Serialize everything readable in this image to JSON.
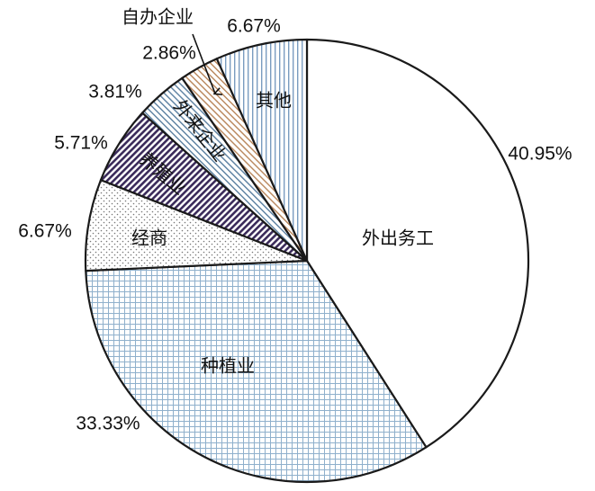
{
  "chart_data": {
    "type": "pie",
    "title": "",
    "start": "12 o'clock",
    "direction": "clockwise",
    "slices": [
      {
        "label": "外出务工",
        "value": 40.95,
        "value_label": "40.95%",
        "pattern": "plain"
      },
      {
        "label": "种植业",
        "value": 33.33,
        "value_label": "33.33%",
        "pattern": "fine grid, light blue"
      },
      {
        "label": "经商",
        "value": 6.67,
        "value_label": "6.67%",
        "pattern": "dots"
      },
      {
        "label": "养殖业",
        "value": 5.71,
        "value_label": "5.71%",
        "pattern": "dense diagonal, purple"
      },
      {
        "label": "外来企业",
        "value": 3.81,
        "value_label": "3.81%",
        "pattern": "diagonal, blue-gray"
      },
      {
        "label": "自办企业",
        "value": 2.86,
        "value_label": "2.86%",
        "pattern": "diagonal, tan"
      },
      {
        "label": "其他",
        "value": 6.67,
        "value_label": "6.67%",
        "pattern": "vertical lines, blue"
      }
    ],
    "colors": {
      "outline": "#1a1a1a",
      "grid": "#8fb0cc",
      "dots": "#777777",
      "purple": "#3a2a5a",
      "bluegray": "#5a7fa0",
      "tan": "#b8855a",
      "vertical": "#7a9cc0"
    }
  }
}
